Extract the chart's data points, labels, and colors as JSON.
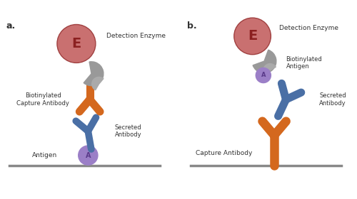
{
  "background_color": "#ffffff",
  "enzyme_color": "#c97070",
  "enzyme_edge_color": "#a04040",
  "streptavidin_color": "#999999",
  "streptavidin_small_color": "#aaaaaa",
  "orange_antibody_color": "#d4681e",
  "blue_antibody_color": "#4a6fa5",
  "antigen_color": "#9b7fc7",
  "antigen_text_color": "#5a3a8a",
  "surface_color": "#888888",
  "label_color": "#333333",
  "panel_a_label": "a.",
  "panel_b_label": "b.",
  "detection_enzyme_label": "Detection Enzyme",
  "biotinylated_capture_label": "Biotinylated\nCapture Antibody",
  "biotinylated_antigen_label": "Biotinylated\nAntigen",
  "secreted_antibody_label": "Secreted\nAntibody",
  "antigen_label": "Antigen",
  "capture_antibody_label": "Capture Antibody",
  "enzyme_letter": "E",
  "antigen_letter": "A"
}
